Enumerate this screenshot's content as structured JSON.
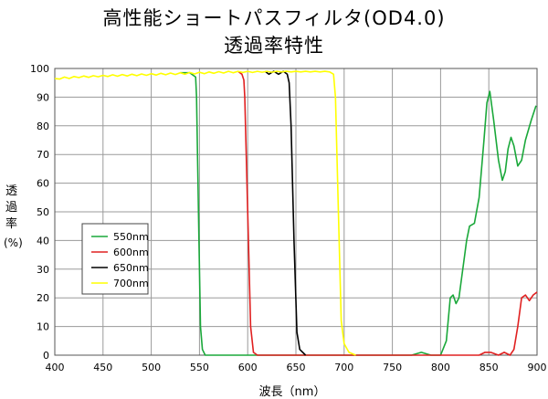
{
  "chart_data": {
    "type": "line",
    "title": "高性能ショートパスフィルタ(OD4.0)",
    "subtitle": "透過率特性",
    "xlabel": "波長（nm）",
    "ylabel": [
      "透",
      "過",
      "率",
      "(%)"
    ],
    "xlim": [
      400,
      900
    ],
    "ylim": [
      0,
      100
    ],
    "x_ticks": [
      400,
      450,
      500,
      550,
      600,
      650,
      700,
      750,
      800,
      850,
      900
    ],
    "y_ticks": [
      0,
      10,
      20,
      30,
      40,
      50,
      60,
      70,
      80,
      90,
      100
    ],
    "grid": true,
    "legend_position": "center-left",
    "series": [
      {
        "name": "550nm",
        "color": "#1aa83a",
        "points": [
          [
            530,
            98.5
          ],
          [
            540,
            98.5
          ],
          [
            546,
            97
          ],
          [
            547,
            90
          ],
          [
            549,
            50
          ],
          [
            551,
            10
          ],
          [
            553,
            2
          ],
          [
            556,
            0
          ],
          [
            770,
            0
          ],
          [
            780,
            1
          ],
          [
            790,
            0
          ],
          [
            800,
            0
          ],
          [
            806,
            5
          ],
          [
            810,
            20
          ],
          [
            813,
            21
          ],
          [
            816,
            18
          ],
          [
            819,
            20
          ],
          [
            823,
            30
          ],
          [
            827,
            40
          ],
          [
            830,
            45
          ],
          [
            835,
            46
          ],
          [
            840,
            55
          ],
          [
            845,
            75
          ],
          [
            848,
            88
          ],
          [
            851,
            92
          ],
          [
            855,
            82
          ],
          [
            860,
            68
          ],
          [
            864,
            61
          ],
          [
            867,
            64
          ],
          [
            870,
            72
          ],
          [
            873,
            76
          ],
          [
            876,
            73
          ],
          [
            880,
            66
          ],
          [
            884,
            68
          ],
          [
            888,
            75
          ],
          [
            894,
            82
          ],
          [
            899,
            87
          ]
        ]
      },
      {
        "name": "600nm",
        "color": "#e02020",
        "points": [
          [
            590,
            99
          ],
          [
            594,
            98
          ],
          [
            596,
            96
          ],
          [
            597,
            90
          ],
          [
            600,
            50
          ],
          [
            603,
            10
          ],
          [
            606,
            1
          ],
          [
            610,
            0
          ],
          [
            840,
            0
          ],
          [
            846,
            1
          ],
          [
            852,
            1
          ],
          [
            860,
            0
          ],
          [
            866,
            1
          ],
          [
            872,
            0
          ],
          [
            876,
            2
          ],
          [
            880,
            10
          ],
          [
            884,
            20
          ],
          [
            888,
            21
          ],
          [
            892,
            19
          ],
          [
            896,
            21
          ],
          [
            900,
            22
          ]
        ]
      },
      {
        "name": "650nm",
        "color": "#000000",
        "points": [
          [
            618,
            99
          ],
          [
            622,
            98
          ],
          [
            627,
            99
          ],
          [
            632,
            98
          ],
          [
            637,
            99
          ],
          [
            641,
            98
          ],
          [
            643,
            95
          ],
          [
            645,
            80
          ],
          [
            648,
            40
          ],
          [
            651,
            8
          ],
          [
            654,
            2
          ],
          [
            660,
            0
          ]
        ]
      },
      {
        "name": "700nm",
        "color": "#ffff00",
        "points": [
          [
            400,
            96.5
          ],
          [
            405,
            96.3
          ],
          [
            410,
            97
          ],
          [
            415,
            96.5
          ],
          [
            420,
            97.2
          ],
          [
            425,
            96.8
          ],
          [
            430,
            97.4
          ],
          [
            435,
            96.9
          ],
          [
            440,
            97.5
          ],
          [
            445,
            97.1
          ],
          [
            450,
            97.6
          ],
          [
            455,
            97.2
          ],
          [
            460,
            97.8
          ],
          [
            465,
            97.3
          ],
          [
            470,
            97.9
          ],
          [
            475,
            97.4
          ],
          [
            480,
            98
          ],
          [
            485,
            97.5
          ],
          [
            490,
            98.1
          ],
          [
            495,
            97.6
          ],
          [
            500,
            98.2
          ],
          [
            505,
            97.7
          ],
          [
            510,
            98.3
          ],
          [
            515,
            97.8
          ],
          [
            520,
            98.4
          ],
          [
            525,
            97.9
          ],
          [
            530,
            98.5
          ],
          [
            535,
            98
          ],
          [
            540,
            98.6
          ],
          [
            545,
            98.1
          ],
          [
            550,
            98.7
          ],
          [
            555,
            98.2
          ],
          [
            560,
            98.8
          ],
          [
            565,
            98.3
          ],
          [
            570,
            98.9
          ],
          [
            575,
            98.4
          ],
          [
            580,
            99
          ],
          [
            585,
            98.5
          ],
          [
            590,
            99
          ],
          [
            595,
            98.6
          ],
          [
            600,
            99
          ],
          [
            605,
            98.6
          ],
          [
            610,
            99
          ],
          [
            615,
            98.7
          ],
          [
            620,
            99
          ],
          [
            625,
            98.7
          ],
          [
            630,
            99
          ],
          [
            635,
            98.8
          ],
          [
            640,
            99
          ],
          [
            645,
            98.8
          ],
          [
            650,
            99
          ],
          [
            655,
            98.8
          ],
          [
            660,
            99
          ],
          [
            665,
            98.8
          ],
          [
            670,
            99
          ],
          [
            675,
            98.8
          ],
          [
            680,
            99
          ],
          [
            685,
            98.8
          ],
          [
            689,
            98
          ],
          [
            691,
            90
          ],
          [
            694,
            50
          ],
          [
            697,
            12
          ],
          [
            700,
            4
          ],
          [
            705,
            1
          ],
          [
            712,
            0
          ]
        ]
      }
    ]
  }
}
